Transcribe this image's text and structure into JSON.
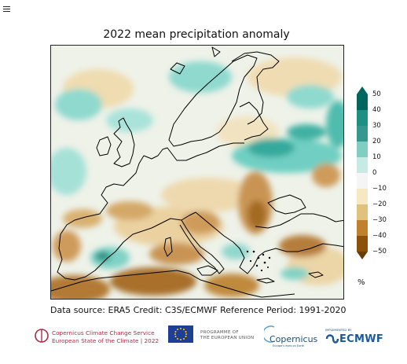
{
  "title": "2022 mean precipitation anomaly",
  "colorbar": {
    "unit": "%",
    "ticks": [
      "50",
      "40",
      "30",
      "20",
      "10",
      "0",
      "−10",
      "−20",
      "−30",
      "−40",
      "−50"
    ],
    "colors": [
      "#01665e",
      "#1f8f84",
      "#35978f",
      "#80cdc1",
      "#c7eae5",
      "#f5f5f5",
      "#f6e8c3",
      "#dfc27d",
      "#bf812d",
      "#8c510a"
    ]
  },
  "map": {
    "wet_color": "#6fcfc2",
    "dry_color": "#c08a3e",
    "coastline_color": "#000000"
  },
  "caption": "Data source: ERA5  Credit: C3S/ECMWF  Reference Period: 1991-2020",
  "logos": {
    "c3s_line1": "Copernicus Climate Change Service",
    "c3s_line2": "European State of the Climate | 2022",
    "eu_line1": "PROGRAMME OF",
    "eu_line2": "THE EUROPEAN UNION",
    "copernicus": "Copernicus",
    "copernicus_sub": "Europe's eyes on Earth",
    "ecmwf_small": "IMPLEMENTED BY",
    "ecmwf": "ECMWF"
  }
}
